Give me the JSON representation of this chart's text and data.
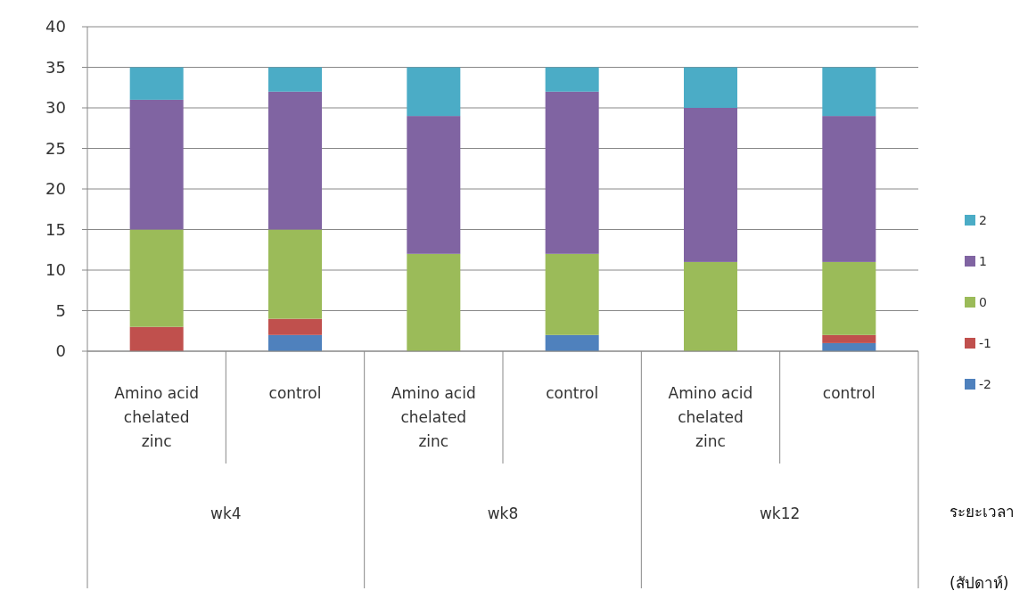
{
  "chart_data": {
    "type": "bar",
    "stacked": true,
    "xlabel": "ระยะเวลา (สัปดาห์)",
    "categories": [
      "Amino acid chelated zinc",
      "control",
      "Amino acid chelated zinc",
      "control",
      "Amino acid chelated zinc",
      "control"
    ],
    "annotations": [
      "wk4",
      "wk8",
      "wk12"
    ],
    "series": [
      {
        "name": "-2",
        "color": "#4f81bd",
        "values": [
          0,
          2,
          0,
          2,
          0,
          1
        ]
      },
      {
        "name": "-1",
        "color": "#c0504d",
        "values": [
          3,
          2,
          0,
          0,
          0,
          1
        ]
      },
      {
        "name": "0",
        "color": "#9bbb59",
        "values": [
          12,
          11,
          12,
          10,
          11,
          9
        ]
      },
      {
        "name": "1",
        "color": "#8064a2",
        "values": [
          16,
          17,
          17,
          20,
          19,
          18
        ]
      },
      {
        "name": "2",
        "color": "#4bacc6",
        "values": [
          4,
          3,
          6,
          3,
          5,
          6
        ]
      }
    ],
    "ylim": [
      0,
      40
    ],
    "yticks": [
      0,
      5,
      10,
      15,
      20,
      25,
      30,
      35,
      40
    ],
    "grid": "y",
    "legend": "right"
  }
}
